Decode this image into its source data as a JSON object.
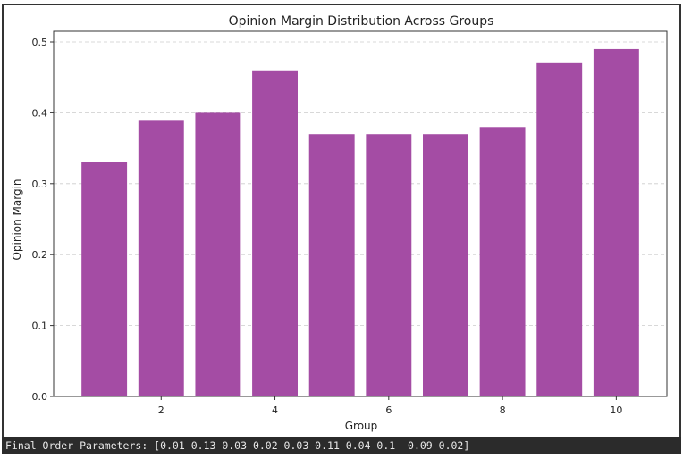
{
  "chart_data": {
    "type": "bar",
    "title": "Opinion Margin Distribution Across Groups",
    "xlabel": "Group",
    "ylabel": "Opinion Margin",
    "categories": [
      1,
      2,
      3,
      4,
      5,
      6,
      7,
      8,
      9,
      10
    ],
    "values": [
      0.33,
      0.39,
      0.4,
      0.46,
      0.37,
      0.37,
      0.37,
      0.38,
      0.47,
      0.49
    ],
    "xlim": [
      0.11,
      10.89
    ],
    "ylim": [
      0,
      0.52
    ],
    "xticks": [
      2,
      4,
      6,
      8,
      10
    ],
    "xtick_labels": [
      "2",
      "4",
      "6",
      "8",
      "10"
    ],
    "yticks": [
      0,
      0.1,
      0.2,
      0.3,
      0.4,
      0.5
    ],
    "ytick_labels": [
      "0.0",
      "0.1",
      "0.2",
      "0.3",
      "0.4",
      "0.5"
    ],
    "bar_color": "#a44ca4",
    "grid": "y-dashed"
  },
  "console": {
    "text": "Final Order Parameters: [0.01 0.13 0.03 0.02 0.03 0.11 0.04 0.1  0.09 0.02]"
  }
}
